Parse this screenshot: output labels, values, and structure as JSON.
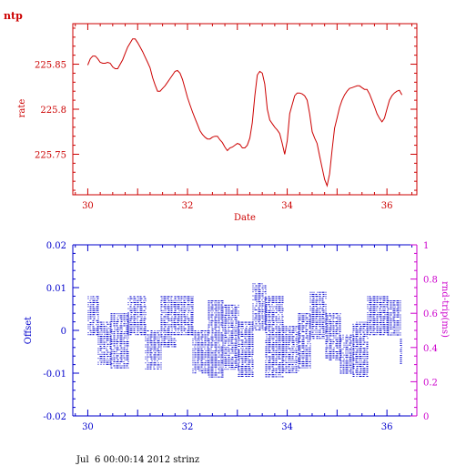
{
  "footer": "Jul  6 00:00:14 2012 strinz",
  "chart_data": [
    {
      "type": "line",
      "title": "ntp",
      "xlabel": "Date",
      "ylabel": "rate",
      "color": "#cc0000",
      "xlim": [
        29.7,
        36.6
      ],
      "ylim": [
        225.705,
        225.895
      ],
      "xticks": [
        30,
        32,
        34,
        36
      ],
      "yticks": [
        225.75,
        225.8,
        225.85
      ],
      "ytick_labels": [
        "225.75",
        "225.8",
        "225.85"
      ],
      "series": [
        {
          "x": [
            30.0,
            30.05,
            30.1,
            30.15,
            30.2,
            30.25,
            30.3,
            30.35,
            30.4,
            30.45,
            30.5,
            30.55,
            30.6,
            30.7,
            30.75,
            30.8,
            30.9,
            30.95,
            31.0,
            31.05,
            31.1,
            31.15,
            31.2,
            31.25,
            31.3,
            31.35,
            31.4,
            31.45,
            31.5,
            31.55,
            31.6,
            31.65,
            31.7,
            31.75,
            31.8,
            31.85,
            31.9,
            31.95,
            32.0,
            32.05,
            32.1,
            32.15,
            32.2,
            32.25,
            32.3,
            32.35,
            32.4,
            32.45,
            32.5,
            32.55,
            32.6,
            32.65,
            32.7,
            32.75,
            32.8,
            32.85,
            32.9,
            32.95,
            33.0,
            33.05,
            33.1,
            33.15,
            33.2,
            33.25,
            33.3,
            33.35,
            33.4,
            33.45,
            33.5,
            33.55,
            33.6,
            33.65,
            33.7,
            33.75,
            33.8,
            33.85,
            33.9,
            33.95,
            34.0,
            34.05,
            34.1,
            34.15,
            34.2,
            34.25,
            34.3,
            34.35,
            34.4,
            34.45,
            34.5,
            34.55,
            34.6,
            34.65,
            34.7,
            34.75,
            34.8,
            34.85,
            34.9,
            34.95,
            35.0,
            35.05,
            35.1,
            35.15,
            35.2,
            35.25,
            35.3,
            35.35,
            35.4,
            35.45,
            35.5,
            35.55,
            35.6,
            35.65,
            35.7,
            35.75,
            35.8,
            35.85,
            35.9,
            35.95,
            36.0,
            36.05,
            36.1,
            36.15,
            36.2,
            36.25,
            36.3
          ],
          "y": [
            225.849,
            225.856,
            225.859,
            225.859,
            225.856,
            225.852,
            225.851,
            225.851,
            225.852,
            225.851,
            225.847,
            225.845,
            225.845,
            225.855,
            225.862,
            225.869,
            225.878,
            225.878,
            225.874,
            225.869,
            225.864,
            225.858,
            225.852,
            225.846,
            225.835,
            225.827,
            225.82,
            225.82,
            225.823,
            225.826,
            225.83,
            225.834,
            225.838,
            225.842,
            225.843,
            225.84,
            225.833,
            225.823,
            225.813,
            225.805,
            225.797,
            225.79,
            225.783,
            225.776,
            225.772,
            225.769,
            225.767,
            225.767,
            225.769,
            225.77,
            225.77,
            225.766,
            225.763,
            225.758,
            225.754,
            225.757,
            225.758,
            225.76,
            225.762,
            225.761,
            225.757,
            225.757,
            225.76,
            225.768,
            225.785,
            225.815,
            225.838,
            225.842,
            225.84,
            225.828,
            225.8,
            225.788,
            225.784,
            225.78,
            225.777,
            225.773,
            225.762,
            225.75,
            225.765,
            225.795,
            225.805,
            225.815,
            225.818,
            225.818,
            225.817,
            225.815,
            225.81,
            225.795,
            225.775,
            225.768,
            225.762,
            225.748,
            225.735,
            225.722,
            225.715,
            225.728,
            225.755,
            225.779,
            225.79,
            225.802,
            225.81,
            225.816,
            225.82,
            225.823,
            225.824,
            225.825,
            225.826,
            225.826,
            225.824,
            225.822,
            225.822,
            225.817,
            225.81,
            225.803,
            225.795,
            225.79,
            225.786,
            225.79,
            225.8,
            225.81,
            225.815,
            225.818,
            225.82,
            225.821,
            225.816
          ]
        }
      ]
    },
    {
      "type": "scatter",
      "xlabel": "",
      "ylabel": "Offset",
      "y2label": "rnd-trip(ms)",
      "color": "#0000cc",
      "color2": "#cc00cc",
      "xlim": [
        29.7,
        36.6
      ],
      "ylim": [
        -0.02,
        0.02
      ],
      "y2lim": [
        0,
        1
      ],
      "xticks": [
        30,
        32,
        34,
        36
      ],
      "yticks": [
        -0.02,
        -0.01,
        0,
        0.01,
        0.02
      ],
      "ytick_labels": [
        "-0.02",
        "-0.01",
        "0",
        "0.01",
        "0.02"
      ],
      "y2ticks": [
        0,
        0.2,
        0.4,
        0.6,
        0.8,
        1
      ],
      "y2tick_labels": [
        "0",
        "0.2",
        "0.4",
        "0.6",
        "0.8",
        "1"
      ],
      "series": [
        {
          "segments": [
            {
              "x0": 30.0,
              "x1": 30.2,
              "ymin": -0.001,
              "ymax": 0.008
            },
            {
              "x0": 30.2,
              "x1": 30.45,
              "ymin": -0.008,
              "ymax": 0.002
            },
            {
              "x0": 30.45,
              "x1": 30.8,
              "ymin": -0.009,
              "ymax": 0.004
            },
            {
              "x0": 30.8,
              "x1": 31.15,
              "ymin": -0.001,
              "ymax": 0.008
            },
            {
              "x0": 31.15,
              "x1": 31.45,
              "ymin": -0.009,
              "ymax": 0.0
            },
            {
              "x0": 31.45,
              "x1": 31.75,
              "ymin": -0.004,
              "ymax": 0.008
            },
            {
              "x0": 31.75,
              "x1": 32.1,
              "ymin": -0.001,
              "ymax": 0.008
            },
            {
              "x0": 32.1,
              "x1": 32.4,
              "ymin": -0.01,
              "ymax": 0.0
            },
            {
              "x0": 32.4,
              "x1": 32.7,
              "ymin": -0.011,
              "ymax": 0.007
            },
            {
              "x0": 32.7,
              "x1": 33.0,
              "ymin": -0.009,
              "ymax": 0.006
            },
            {
              "x0": 33.0,
              "x1": 33.3,
              "ymin": -0.011,
              "ymax": 0.002
            },
            {
              "x0": 33.3,
              "x1": 33.55,
              "ymin": 0.0,
              "ymax": 0.011
            },
            {
              "x0": 33.55,
              "x1": 33.9,
              "ymin": -0.011,
              "ymax": 0.008
            },
            {
              "x0": 33.9,
              "x1": 34.2,
              "ymin": -0.01,
              "ymax": 0.001
            },
            {
              "x0": 34.2,
              "x1": 34.45,
              "ymin": -0.009,
              "ymax": 0.004
            },
            {
              "x0": 34.45,
              "x1": 34.75,
              "ymin": -0.002,
              "ymax": 0.009
            },
            {
              "x0": 34.75,
              "x1": 35.05,
              "ymin": -0.007,
              "ymax": 0.004
            },
            {
              "x0": 35.05,
              "x1": 35.3,
              "ymin": -0.01,
              "ymax": -0.001
            },
            {
              "x0": 35.3,
              "x1": 35.6,
              "ymin": -0.011,
              "ymax": 0.002
            },
            {
              "x0": 35.6,
              "x1": 36.0,
              "ymin": -0.001,
              "ymax": 0.008
            },
            {
              "x0": 36.0,
              "x1": 36.25,
              "ymin": -0.001,
              "ymax": 0.007
            },
            {
              "x0": 36.25,
              "x1": 36.3,
              "ymin": -0.008,
              "ymax": -0.002
            }
          ]
        }
      ]
    }
  ]
}
